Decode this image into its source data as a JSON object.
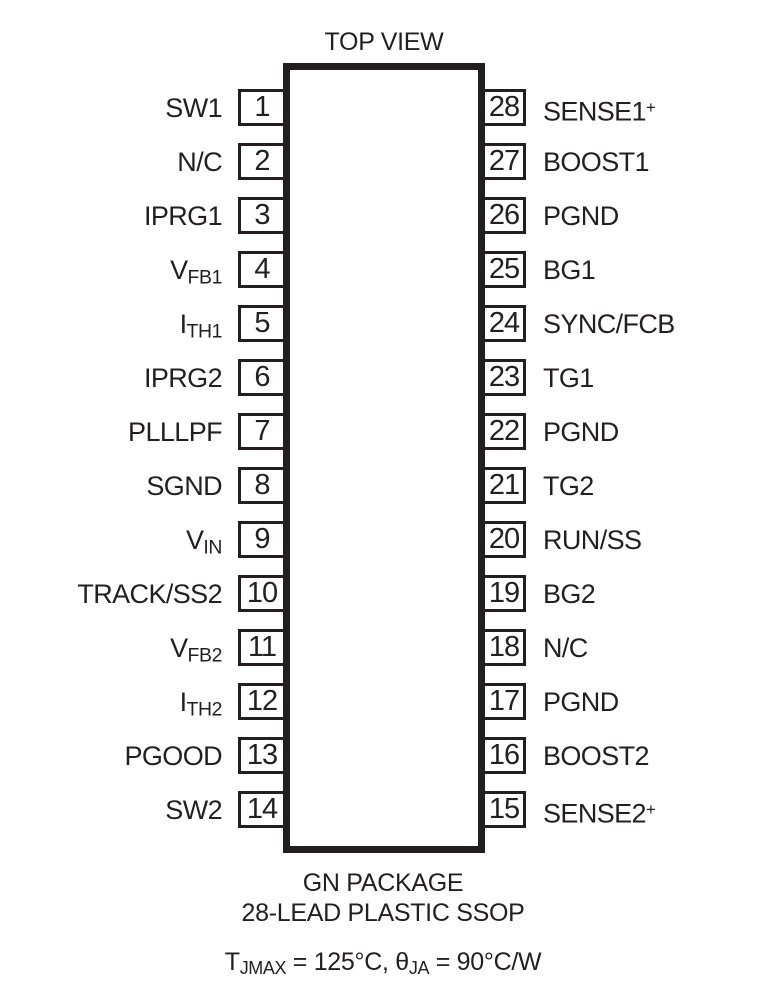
{
  "diagram": {
    "title": "TOP VIEW",
    "ink_color": "#231f20"
  },
  "pins": {
    "left": [
      {
        "num": "1",
        "label": "SW1"
      },
      {
        "num": "2",
        "label": "N/C"
      },
      {
        "num": "3",
        "label": "IPRG1"
      },
      {
        "num": "4",
        "label": "V_{FB1}"
      },
      {
        "num": "5",
        "label": "I_{TH1}"
      },
      {
        "num": "6",
        "label": "IPRG2"
      },
      {
        "num": "7",
        "label": "PLLLPF"
      },
      {
        "num": "8",
        "label": "SGND"
      },
      {
        "num": "9",
        "label": "V_{IN}"
      },
      {
        "num": "10",
        "label": "TRACK/SS2"
      },
      {
        "num": "11",
        "label": "V_{FB2}"
      },
      {
        "num": "12",
        "label": "I_{TH2}"
      },
      {
        "num": "13",
        "label": "PGOOD"
      },
      {
        "num": "14",
        "label": "SW2"
      }
    ],
    "right": [
      {
        "num": "28",
        "label": "SENSE1^{+}"
      },
      {
        "num": "27",
        "label": "BOOST1"
      },
      {
        "num": "26",
        "label": "PGND"
      },
      {
        "num": "25",
        "label": "BG1"
      },
      {
        "num": "24",
        "label": "SYNC/FCB"
      },
      {
        "num": "23",
        "label": "TG1"
      },
      {
        "num": "22",
        "label": "PGND"
      },
      {
        "num": "21",
        "label": "TG2"
      },
      {
        "num": "20",
        "label": "RUN/SS"
      },
      {
        "num": "19",
        "label": "BG2"
      },
      {
        "num": "18",
        "label": "N/C"
      },
      {
        "num": "17",
        "label": "PGND"
      },
      {
        "num": "16",
        "label": "BOOST2"
      },
      {
        "num": "15",
        "label": "SENSE2^{+}"
      }
    ]
  },
  "footer": {
    "package_line1": "GN PACKAGE",
    "package_line2": "28-LEAD PLASTIC SSOP",
    "thermal_note": "T_{JMAX} = 125°C, θ_{JA} = 90°C/W"
  }
}
